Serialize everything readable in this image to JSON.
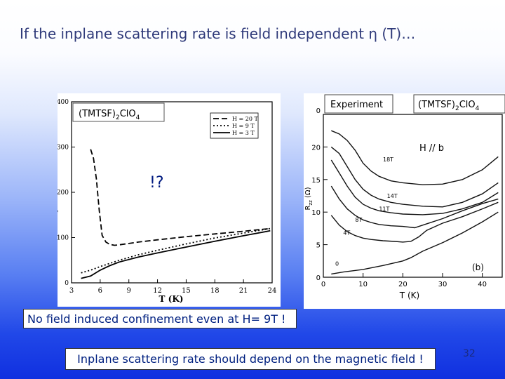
{
  "slide": {
    "title": "If the inplane scattering rate is field independent η (T)…",
    "question_mark": "!?",
    "note_confinement": "No field induced confinement even at H= 9T !",
    "note_scattering": "Inplane scattering rate should depend on the magnetic field !",
    "page_number": "32"
  },
  "chart_data": [
    {
      "type": "line",
      "compound_label": "(TMTSF)",
      "compound_sub": "2",
      "compound_tail": "ClO",
      "compound_sub2": "4",
      "xlabel": "T (K)",
      "ylabel": "ρc (arb. units)",
      "xlim": [
        3,
        24
      ],
      "ylim": [
        0,
        400
      ],
      "xticks": [
        "3",
        "6",
        "9",
        "12",
        "15",
        "18",
        "21",
        "24"
      ],
      "yticks": [
        "0",
        "100",
        "200",
        "300",
        "400"
      ],
      "legend_position": "top-right",
      "series": [
        {
          "name": "H = 20 T",
          "style": "dashed",
          "x": [
            5.0,
            5.3,
            5.6,
            5.9,
            6.2,
            6.6,
            7.0,
            7.5,
            8.0,
            9.0,
            10.0,
            12.0,
            15.0,
            18.0,
            21.0,
            23.8
          ],
          "y": [
            295,
            275,
            230,
            160,
            105,
            90,
            85,
            83,
            84,
            87,
            90,
            95,
            102,
            108,
            114,
            120
          ]
        },
        {
          "name": "H = 9 T",
          "style": "dotted",
          "x": [
            4.0,
            5.0,
            6.0,
            7.0,
            8.0,
            10.0,
            12.0,
            15.0,
            18.0,
            21.0,
            23.8
          ],
          "y": [
            22,
            28,
            36,
            43,
            50,
            62,
            72,
            86,
            99,
            110,
            120
          ]
        },
        {
          "name": "H = 3 T",
          "style": "solid",
          "x": [
            4.0,
            5.0,
            6.0,
            7.0,
            8.0,
            10.0,
            12.0,
            15.0,
            18.0,
            21.0,
            23.8
          ],
          "y": [
            10,
            15,
            28,
            38,
            46,
            57,
            66,
            79,
            92,
            104,
            115
          ]
        }
      ]
    },
    {
      "type": "line",
      "legend_title": "Experiment",
      "compound_label": "(TMTSF)",
      "compound_sub": "2",
      "compound_tail": "ClO",
      "compound_sub2": "4",
      "field_direction": "H // b",
      "panel_tag": "(b)",
      "xlabel": "T (K)",
      "ylabel": "Rzz (Ω)",
      "xlim": [
        0,
        45
      ],
      "ylim": [
        0,
        25
      ],
      "xticks": [
        "0",
        "10",
        "20",
        "30",
        "40"
      ],
      "yticks": [
        "0",
        "5",
        "10",
        "15",
        "20"
      ],
      "top_axis_label": "0",
      "series": [
        {
          "name": "18T",
          "x": [
            2,
            4,
            6,
            8,
            10,
            12,
            14,
            17,
            20,
            25,
            30,
            35,
            40,
            44
          ],
          "y": [
            22.5,
            22.0,
            21.0,
            19.5,
            17.5,
            16.3,
            15.5,
            14.8,
            14.5,
            14.2,
            14.3,
            15.0,
            16.5,
            18.5
          ]
        },
        {
          "name": "14T",
          "x": [
            2,
            4,
            6,
            8,
            10,
            12,
            14,
            17,
            20,
            25,
            30,
            35,
            40,
            44
          ],
          "y": [
            20.0,
            19.0,
            17.0,
            15.0,
            13.5,
            12.6,
            12.0,
            11.5,
            11.2,
            10.9,
            10.8,
            11.5,
            12.8,
            14.5
          ]
        },
        {
          "name": "11T",
          "x": [
            2,
            4,
            6,
            8,
            10,
            12,
            14,
            17,
            20,
            25,
            30,
            35,
            40,
            44
          ],
          "y": [
            18.0,
            16.0,
            14.0,
            12.3,
            11.2,
            10.6,
            10.2,
            9.9,
            9.7,
            9.6,
            9.8,
            10.5,
            11.5,
            13.0
          ]
        },
        {
          "name": "8T",
          "x": [
            2,
            4,
            6,
            8,
            10,
            12,
            14,
            17,
            20,
            23,
            26,
            30,
            35,
            40,
            44
          ],
          "y": [
            14.0,
            12.0,
            10.5,
            9.5,
            8.8,
            8.4,
            8.1,
            7.9,
            7.8,
            7.6,
            8.2,
            9.0,
            10.2,
            11.3,
            12.0
          ]
        },
        {
          "name": "4T",
          "x": [
            2,
            4,
            6,
            8,
            10,
            12,
            15,
            18,
            20,
            22,
            24,
            26,
            30,
            35,
            40,
            44
          ],
          "y": [
            9.5,
            8.0,
            7.0,
            6.4,
            6.0,
            5.8,
            5.6,
            5.5,
            5.4,
            5.5,
            6.2,
            7.2,
            8.3,
            9.3,
            10.5,
            11.5
          ]
        },
        {
          "name": "0",
          "x": [
            2,
            5,
            10,
            15,
            20,
            22,
            25,
            30,
            35,
            40,
            44
          ],
          "y": [
            0.5,
            0.8,
            1.2,
            1.8,
            2.5,
            3.0,
            4.0,
            5.3,
            6.8,
            8.5,
            10.0
          ]
        }
      ]
    }
  ]
}
